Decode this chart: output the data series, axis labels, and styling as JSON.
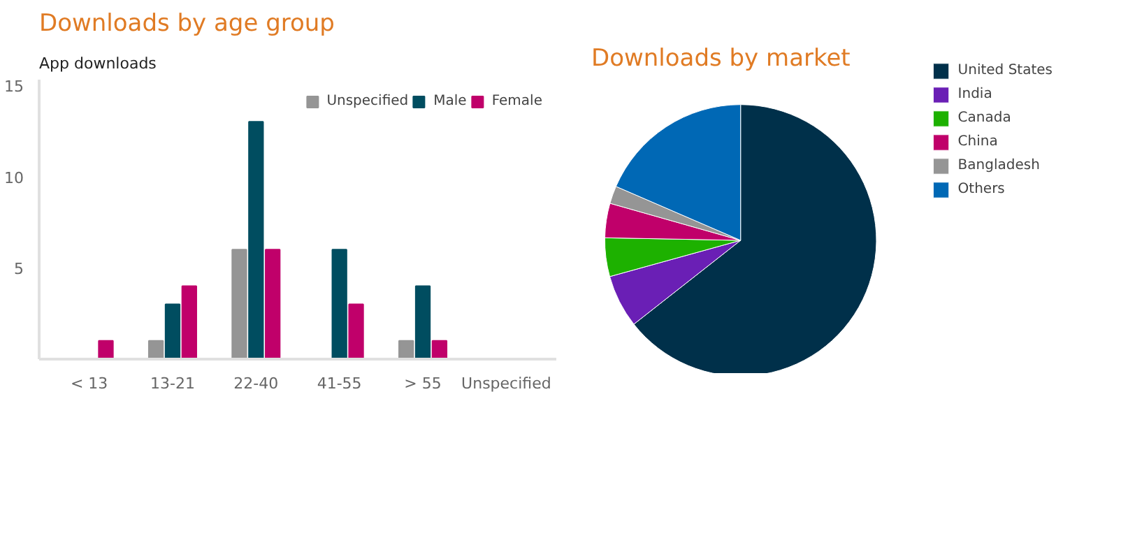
{
  "chart_data": [
    {
      "type": "bar",
      "title": "Downloads by age group",
      "subtitle": "App downloads",
      "categories": [
        "< 13",
        "13-21",
        "22-40",
        "41-55",
        "> 55",
        "Unspecified"
      ],
      "series": [
        {
          "name": "Unspecified",
          "color": "#959595",
          "values": [
            0,
            1,
            6,
            0,
            1,
            0
          ]
        },
        {
          "name": "Male",
          "color": "#004d60",
          "values": [
            0,
            3,
            13,
            6,
            4,
            0
          ]
        },
        {
          "name": "Female",
          "color": "#c0006a",
          "values": [
            1,
            4,
            6,
            3,
            1,
            0
          ]
        }
      ],
      "ylim": [
        0,
        15.3
      ],
      "yticks": [
        5,
        10,
        15
      ],
      "legend": "top right"
    },
    {
      "type": "pie",
      "title": "Downloads by market",
      "categories": [
        "United States",
        "India",
        "Canada",
        "China",
        "Bangladesh",
        "Others"
      ],
      "values": [
        64.4,
        6.3,
        4.6,
        4.1,
        2.1,
        18.5
      ],
      "colors": [
        "#00304a",
        "#6a1fb5",
        "#1db100",
        "#c0006a",
        "#959595",
        "#0068b5"
      ],
      "legend": "right"
    }
  ]
}
